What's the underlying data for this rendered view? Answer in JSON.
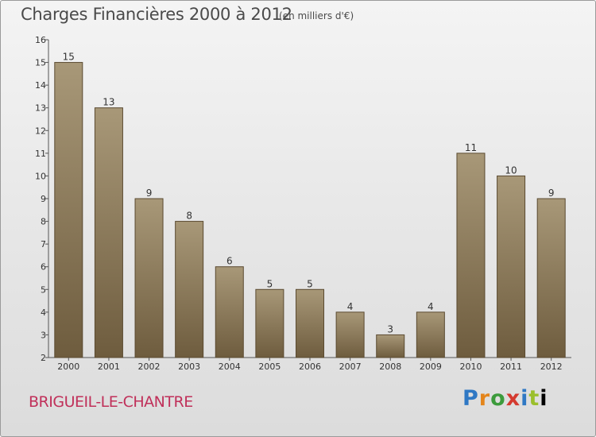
{
  "header": {
    "title": "Charges Financières 2000 à 2012",
    "unit": "(en milliers d'€)"
  },
  "footer": {
    "commune": "BRIGUEIL-LE-CHANTRE",
    "logo_letters": [
      "P",
      "r",
      "o",
      "x",
      "i",
      "t",
      "i"
    ]
  },
  "colors": {
    "bar_top": "#a89878",
    "bar_bottom": "#6e5c3e",
    "bar_border": "#5a4a30",
    "commune": "#c0305a"
  },
  "chart_data": {
    "type": "bar",
    "title": "Charges Financières 2000 à 2012",
    "subtitle": "(en milliers d'€)",
    "categories": [
      "2000",
      "2001",
      "2002",
      "2003",
      "2004",
      "2005",
      "2006",
      "2007",
      "2008",
      "2009",
      "2010",
      "2011",
      "2012"
    ],
    "values": [
      15,
      13,
      9,
      8,
      6,
      5,
      5,
      4,
      3,
      4,
      11,
      10,
      9
    ],
    "ylim": [
      2,
      16
    ],
    "yticks": [
      2,
      3,
      4,
      5,
      6,
      7,
      8,
      9,
      10,
      11,
      12,
      13,
      14,
      15,
      16
    ],
    "xlabel": "",
    "ylabel": "",
    "grid": false
  }
}
